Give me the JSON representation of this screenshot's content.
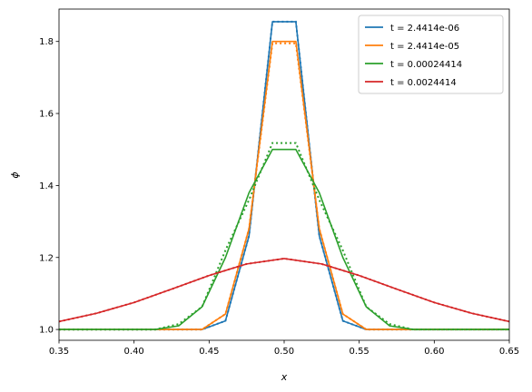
{
  "chart_data": {
    "type": "line",
    "title": "",
    "xlabel": "x",
    "ylabel": "ϕ",
    "xlim": [
      0.35,
      0.65
    ],
    "ylim": [
      0.97,
      1.89
    ],
    "grid": false,
    "legend_position": "top-right",
    "x_ticks": [
      "0.35",
      "0.40",
      "0.45",
      "0.50",
      "0.55",
      "0.60",
      "0.65"
    ],
    "y_ticks": [
      "1.0",
      "1.2",
      "1.4",
      "1.6",
      "1.8"
    ],
    "series": [
      {
        "name": "t = 2.4414e-06",
        "color": "#1f77b4",
        "solid": [
          [
            0.35,
            1.0
          ],
          [
            0.4453,
            1.0
          ],
          [
            0.4609,
            1.024
          ],
          [
            0.4766,
            1.26
          ],
          [
            0.4922,
            1.855
          ],
          [
            0.5078,
            1.855
          ],
          [
            0.5234,
            1.26
          ],
          [
            0.5391,
            1.024
          ],
          [
            0.5547,
            1.0
          ],
          [
            0.65,
            1.0
          ]
        ],
        "dotted": [
          [
            0.35,
            1.0
          ],
          [
            0.4453,
            1.0
          ],
          [
            0.4609,
            1.024
          ],
          [
            0.4766,
            1.26
          ],
          [
            0.4922,
            1.855
          ],
          [
            0.5078,
            1.855
          ],
          [
            0.5234,
            1.26
          ],
          [
            0.5391,
            1.024
          ],
          [
            0.5547,
            1.0
          ],
          [
            0.65,
            1.0
          ]
        ]
      },
      {
        "name": "t = 2.4414e-05",
        "color": "#ff7f0e",
        "solid": [
          [
            0.35,
            1.0
          ],
          [
            0.4453,
            1.0
          ],
          [
            0.4609,
            1.043
          ],
          [
            0.4766,
            1.28
          ],
          [
            0.4922,
            1.8
          ],
          [
            0.5078,
            1.8
          ],
          [
            0.5234,
            1.28
          ],
          [
            0.5391,
            1.043
          ],
          [
            0.5547,
            1.0
          ],
          [
            0.65,
            1.0
          ]
        ],
        "dotted": [
          [
            0.35,
            1.0
          ],
          [
            0.4453,
            1.0
          ],
          [
            0.4609,
            1.043
          ],
          [
            0.4766,
            1.28
          ],
          [
            0.4922,
            1.795
          ],
          [
            0.5078,
            1.795
          ],
          [
            0.5234,
            1.28
          ],
          [
            0.5391,
            1.043
          ],
          [
            0.5547,
            1.0
          ],
          [
            0.65,
            1.0
          ]
        ]
      },
      {
        "name": "t = 0.00024414",
        "color": "#2ca02c",
        "solid": [
          [
            0.35,
            1.0
          ],
          [
            0.4141,
            1.0
          ],
          [
            0.4297,
            1.01
          ],
          [
            0.4453,
            1.063
          ],
          [
            0.4609,
            1.2
          ],
          [
            0.4766,
            1.38
          ],
          [
            0.4922,
            1.5
          ],
          [
            0.5078,
            1.5
          ],
          [
            0.5234,
            1.38
          ],
          [
            0.5391,
            1.2
          ],
          [
            0.5547,
            1.063
          ],
          [
            0.5703,
            1.01
          ],
          [
            0.5859,
            1.0
          ],
          [
            0.65,
            1.0
          ]
        ],
        "dotted": [
          [
            0.35,
            1.0
          ],
          [
            0.4141,
            1.0
          ],
          [
            0.4297,
            1.015
          ],
          [
            0.4453,
            1.063
          ],
          [
            0.4609,
            1.22
          ],
          [
            0.4766,
            1.36
          ],
          [
            0.4922,
            1.518
          ],
          [
            0.5078,
            1.518
          ],
          [
            0.5234,
            1.36
          ],
          [
            0.5391,
            1.22
          ],
          [
            0.5547,
            1.063
          ],
          [
            0.5703,
            1.015
          ],
          [
            0.5859,
            1.0
          ],
          [
            0.65,
            1.0
          ]
        ]
      },
      {
        "name": "t = 0.0024414",
        "color": "#d62728",
        "solid": [
          [
            0.35,
            1.022
          ],
          [
            0.375,
            1.045
          ],
          [
            0.4,
            1.075
          ],
          [
            0.425,
            1.112
          ],
          [
            0.45,
            1.15
          ],
          [
            0.475,
            1.182
          ],
          [
            0.5,
            1.197
          ],
          [
            0.525,
            1.182
          ],
          [
            0.55,
            1.15
          ],
          [
            0.575,
            1.112
          ],
          [
            0.6,
            1.075
          ],
          [
            0.625,
            1.045
          ],
          [
            0.65,
            1.022
          ]
        ],
        "dotted": [
          [
            0.35,
            1.022
          ],
          [
            0.375,
            1.045
          ],
          [
            0.4,
            1.075
          ],
          [
            0.425,
            1.112
          ],
          [
            0.45,
            1.15
          ],
          [
            0.475,
            1.182
          ],
          [
            0.5,
            1.197
          ],
          [
            0.525,
            1.182
          ],
          [
            0.55,
            1.15
          ],
          [
            0.575,
            1.112
          ],
          [
            0.6,
            1.075
          ],
          [
            0.625,
            1.045
          ],
          [
            0.65,
            1.022
          ]
        ]
      }
    ]
  }
}
